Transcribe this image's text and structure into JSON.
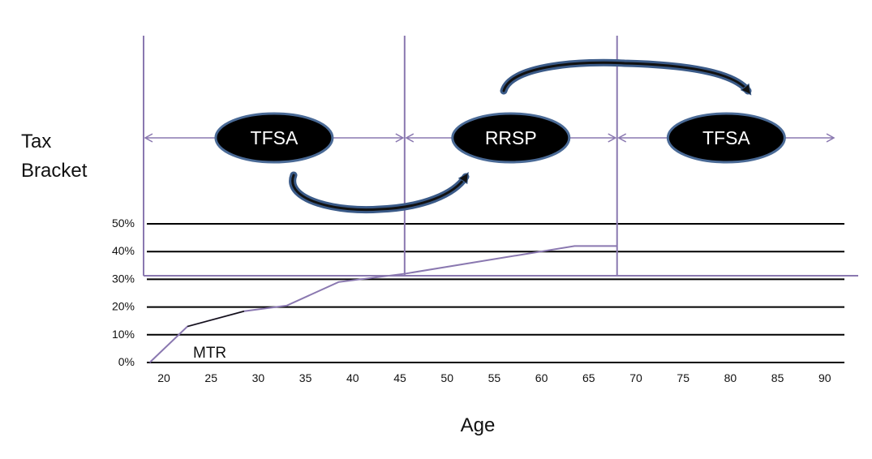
{
  "chart_data": {
    "type": "line",
    "ylabel_line1": "Tax",
    "ylabel_line2": "Bracket",
    "xlabel": "Age",
    "x_ticks": [
      20,
      25,
      30,
      35,
      40,
      45,
      50,
      55,
      60,
      65,
      70,
      75,
      80,
      85,
      90
    ],
    "y_ticks": [
      "0%",
      "10%",
      "20%",
      "30%",
      "40%",
      "50%"
    ],
    "y_tick_values": [
      0,
      10,
      20,
      30,
      40,
      50
    ],
    "series": [
      {
        "name": "MTR",
        "points": [
          [
            18.5,
            0
          ],
          [
            22.5,
            13
          ],
          [
            28.5,
            18.5
          ],
          [
            33,
            20.5
          ],
          [
            38.5,
            29
          ],
          [
            45.5,
            32
          ],
          [
            63.5,
            42
          ],
          [
            68,
            42
          ]
        ]
      }
    ],
    "phases": [
      {
        "label": "TFSA",
        "start_age": 18,
        "end_age": 45.5
      },
      {
        "label": "RRSP",
        "start_age": 45.5,
        "end_age": 68
      },
      {
        "label": "TFSA",
        "start_age": 68,
        "end_age": 92
      }
    ],
    "transfer_arrows": [
      {
        "from": "TFSA",
        "to": "RRSP"
      },
      {
        "from": "RRSP",
        "to": "TFSA"
      }
    ],
    "colors": {
      "phase_lines": "#8a78b0",
      "mtr_line": "#8a78b0",
      "mtr_black_segment": "#111111",
      "grid": "#000000",
      "ellipse_fill": "#000000",
      "ellipse_stroke": "#4a6a96",
      "arrow": "#3a5a88"
    }
  }
}
